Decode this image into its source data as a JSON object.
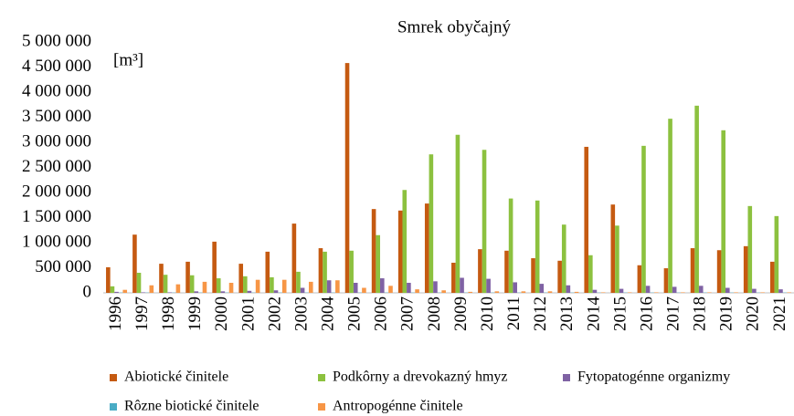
{
  "chart_data": {
    "type": "bar",
    "title": "Smrek obyčajný",
    "unit_label": "[m³]",
    "categories": [
      "1996",
      "1997",
      "1998",
      "1999",
      "2000",
      "2001",
      "2002",
      "2003",
      "2004",
      "2005",
      "2006",
      "2007",
      "2008",
      "2009",
      "2010",
      "2011",
      "2012",
      "2013",
      "2014",
      "2015",
      "2016",
      "2017",
      "2018",
      "2019",
      "2020",
      "2021"
    ],
    "series": [
      {
        "name": "Abiotické činitele",
        "color": "#c55a11",
        "values": [
          510000,
          1160000,
          580000,
          620000,
          1020000,
          580000,
          820000,
          1380000,
          890000,
          4580000,
          1670000,
          1640000,
          1780000,
          600000,
          870000,
          840000,
          690000,
          640000,
          2910000,
          1760000,
          550000,
          490000,
          890000,
          850000,
          930000,
          620000
        ]
      },
      {
        "name": "Podkôrny a drevokazný hmyz",
        "color": "#8cc13f",
        "values": [
          130000,
          400000,
          360000,
          350000,
          290000,
          330000,
          310000,
          420000,
          820000,
          840000,
          1150000,
          2050000,
          2760000,
          3150000,
          2850000,
          1880000,
          1840000,
          1360000,
          750000,
          1340000,
          2930000,
          3470000,
          3730000,
          3240000,
          1730000,
          1530000
        ]
      },
      {
        "name": "Fytopatogénne organizmy",
        "color": "#7f62a4",
        "values": [
          20000,
          10000,
          10000,
          30000,
          30000,
          40000,
          50000,
          100000,
          250000,
          200000,
          290000,
          200000,
          230000,
          300000,
          280000,
          210000,
          180000,
          150000,
          60000,
          80000,
          140000,
          120000,
          140000,
          100000,
          80000,
          70000
        ]
      },
      {
        "name": "Rôzne biotické činitele",
        "color": "#4aacc5",
        "values": [
          5000,
          5000,
          5000,
          5000,
          5000,
          5000,
          5000,
          5000,
          5000,
          5000,
          5000,
          5000,
          5000,
          5000,
          5000,
          5000,
          5000,
          5000,
          5000,
          5000,
          5000,
          5000,
          5000,
          5000,
          5000,
          5000
        ]
      },
      {
        "name": "Antropogénne činitele",
        "color": "#f79646",
        "values": [
          60000,
          150000,
          170000,
          220000,
          200000,
          260000,
          260000,
          220000,
          250000,
          100000,
          140000,
          70000,
          50000,
          20000,
          30000,
          30000,
          30000,
          20000,
          10000,
          10000,
          10000,
          10000,
          10000,
          10000,
          10000,
          10000
        ]
      }
    ],
    "ylim": [
      0,
      5000000
    ],
    "yticks": [
      0,
      {
        "value": 500000,
        "label": "500 000"
      },
      {
        "value": 1000000,
        "label": "1 000 000"
      },
      {
        "value": 1500000,
        "label": "1 500 000"
      },
      {
        "value": 2000000,
        "label": "2 000 000"
      },
      {
        "value": 2500000,
        "label": "2 500 000"
      },
      {
        "value": 3000000,
        "label": "3 000 000"
      },
      {
        "value": 3500000,
        "label": "3 500 000"
      },
      {
        "value": 4000000,
        "label": "4 000 000"
      },
      {
        "value": 4500000,
        "label": "4 500 000"
      },
      {
        "value": 5000000,
        "label": "5 000 000"
      }
    ],
    "grid": false,
    "legend": "bottom"
  }
}
